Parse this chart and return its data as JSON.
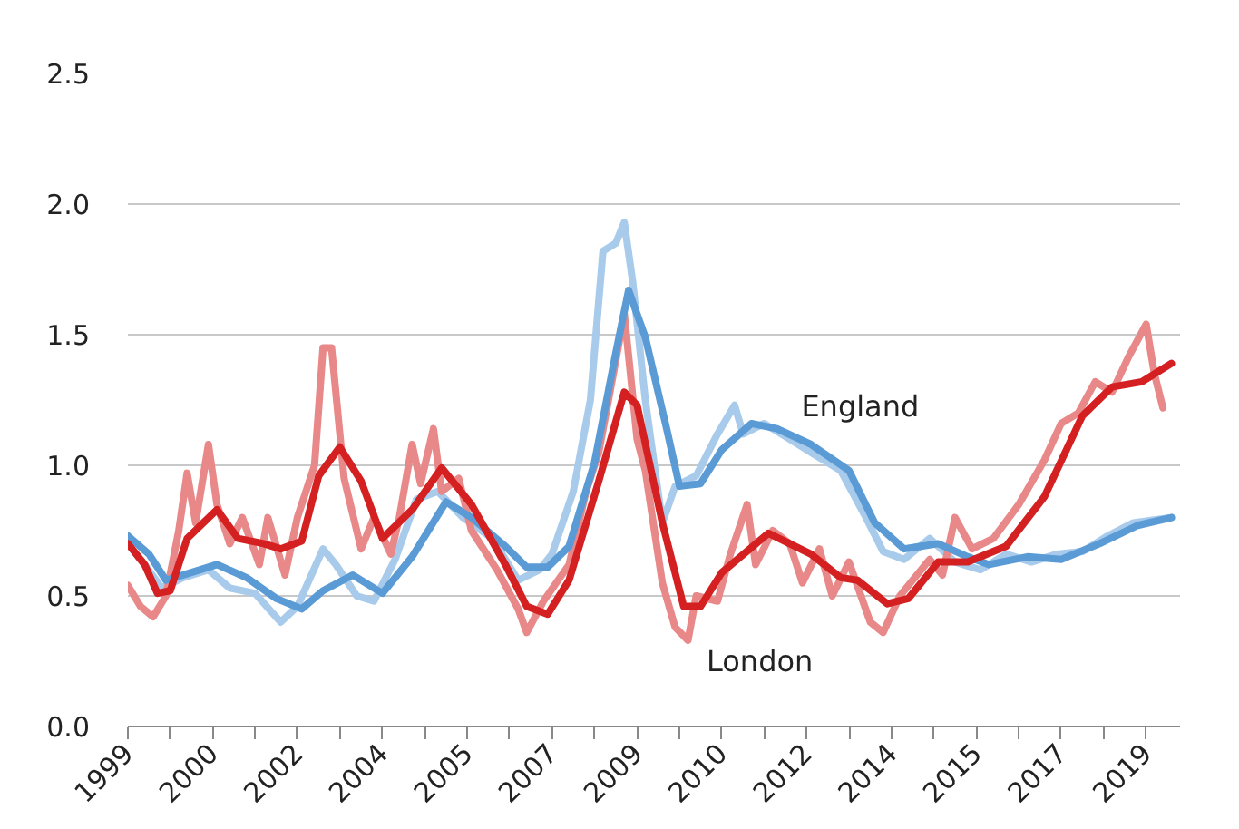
{
  "chart_data": {
    "type": "line",
    "xlim": [
      "1999-01",
      "2019-09"
    ],
    "ylim": [
      0,
      2.5
    ],
    "xticks": [
      {
        "value": "1999-01",
        "label": "1999"
      },
      {
        "value": "1999-11",
        "label": null
      },
      {
        "value": "2000-09",
        "label": "2000"
      },
      {
        "value": "2001-07",
        "label": null
      },
      {
        "value": "2002-05",
        "label": "2002"
      },
      {
        "value": "2003-03",
        "label": null
      },
      {
        "value": "2004-01",
        "label": "2004"
      },
      {
        "value": "2004-11",
        "label": null
      },
      {
        "value": "2005-09",
        "label": "2005"
      },
      {
        "value": "2006-07",
        "label": null
      },
      {
        "value": "2007-05",
        "label": "2007"
      },
      {
        "value": "2008-03",
        "label": null
      },
      {
        "value": "2009-01",
        "label": "2009"
      },
      {
        "value": "2009-11",
        "label": null
      },
      {
        "value": "2010-09",
        "label": "2010"
      },
      {
        "value": "2011-07",
        "label": null
      },
      {
        "value": "2012-05",
        "label": "2012"
      },
      {
        "value": "2013-03",
        "label": null
      },
      {
        "value": "2014-01",
        "label": "2014"
      },
      {
        "value": "2014-11",
        "label": null
      },
      {
        "value": "2015-09",
        "label": "2015"
      },
      {
        "value": "2016-07",
        "label": null
      },
      {
        "value": "2017-05",
        "label": "2017"
      },
      {
        "value": "2018-03",
        "label": null
      },
      {
        "value": "2019-01",
        "label": "2019"
      }
    ],
    "yticks": [
      {
        "value": 0,
        "label": "0.0"
      },
      {
        "value": 0.5,
        "label": "0.5"
      },
      {
        "value": 1,
        "label": "1.0"
      },
      {
        "value": 1.5,
        "label": "1.5"
      },
      {
        "value": 2,
        "label": "2.0"
      },
      {
        "value": 2.5,
        "label": "2.5"
      }
    ],
    "grid": "y",
    "marker": "none",
    "line_style": "solid",
    "series": [
      {
        "color": "#a8cbec",
        "x": [
          "1999-01",
          "1999-05",
          "1999-09",
          "2000-02",
          "2000-08",
          "2001-01",
          "2001-07",
          "2002-01",
          "2002-05",
          "2002-11",
          "2003-02",
          "2003-07",
          "2003-11",
          "2004-04",
          "2004-09",
          "2005-02",
          "2005-08",
          "2006-03",
          "2006-09",
          "2007-02",
          "2007-05",
          "2007-10",
          "2008-02",
          "2008-05",
          "2008-08",
          "2008-10",
          "2008-12",
          "2009-03",
          "2009-07",
          "2009-10",
          "2010-03",
          "2010-08",
          "2010-12",
          "2011-02",
          "2011-07",
          "2012-01",
          "2012-07",
          "2013-01",
          "2013-07",
          "2013-11",
          "2014-04",
          "2014-10",
          "2015-04",
          "2015-10",
          "2016-04",
          "2016-10",
          "2017-04",
          "2017-10",
          "2018-04",
          "2018-10",
          "2019-07"
        ],
        "values": [
          0.7,
          0.62,
          0.53,
          0.57,
          0.6,
          0.53,
          0.51,
          0.4,
          0.46,
          0.68,
          0.62,
          0.5,
          0.48,
          0.64,
          0.87,
          0.9,
          0.8,
          0.72,
          0.56,
          0.6,
          0.66,
          0.9,
          1.25,
          1.82,
          1.85,
          1.93,
          1.7,
          1.25,
          0.78,
          0.92,
          0.96,
          1.12,
          1.23,
          1.12,
          1.16,
          1.1,
          1.04,
          0.98,
          0.8,
          0.67,
          0.64,
          0.72,
          0.63,
          0.6,
          0.66,
          0.63,
          0.66,
          0.67,
          0.73,
          0.78,
          0.8
        ]
      },
      {
        "color": "#e88888",
        "x": [
          "1999-01",
          "1999-04",
          "1999-07",
          "1999-10",
          "2000-01",
          "2000-03",
          "2000-05",
          "2000-08",
          "2000-10",
          "2001-01",
          "2001-04",
          "2001-08",
          "2001-10",
          "2002-02",
          "2002-05",
          "2002-09",
          "2002-11",
          "2003-01",
          "2003-04",
          "2003-08",
          "2003-11",
          "2004-03",
          "2004-05",
          "2004-08",
          "2004-10",
          "2005-01",
          "2005-03",
          "2005-07",
          "2005-10",
          "2006-04",
          "2006-09",
          "2006-11",
          "2007-03",
          "2007-09",
          "2008-01",
          "2008-04",
          "2008-08",
          "2008-10",
          "2009-01",
          "2009-03",
          "2009-07",
          "2009-10",
          "2010-01",
          "2010-03",
          "2010-08",
          "2010-11",
          "2011-03",
          "2011-05",
          "2011-09",
          "2012-01",
          "2012-04",
          "2012-08",
          "2012-11",
          "2013-03",
          "2013-08",
          "2013-11",
          "2014-03",
          "2014-07",
          "2014-10",
          "2015-01",
          "2015-04",
          "2015-08",
          "2016-01",
          "2016-07",
          "2017-01",
          "2017-05",
          "2017-09",
          "2018-01",
          "2018-05",
          "2018-09",
          "2019-01",
          "2019-03",
          "2019-05"
        ],
        "values": [
          0.54,
          0.46,
          0.42,
          0.5,
          0.75,
          0.97,
          0.78,
          1.08,
          0.85,
          0.7,
          0.8,
          0.62,
          0.8,
          0.58,
          0.8,
          1.0,
          1.45,
          1.45,
          0.95,
          0.68,
          0.8,
          0.66,
          0.8,
          1.08,
          0.93,
          1.14,
          0.9,
          0.95,
          0.75,
          0.6,
          0.45,
          0.36,
          0.48,
          0.62,
          0.9,
          1.05,
          1.4,
          1.58,
          1.1,
          0.98,
          0.55,
          0.38,
          0.33,
          0.5,
          0.48,
          0.66,
          0.85,
          0.62,
          0.75,
          0.7,
          0.55,
          0.68,
          0.5,
          0.63,
          0.4,
          0.36,
          0.5,
          0.58,
          0.64,
          0.58,
          0.8,
          0.68,
          0.72,
          0.85,
          1.02,
          1.16,
          1.2,
          1.32,
          1.28,
          1.42,
          1.54,
          1.35,
          1.22
        ]
      },
      {
        "name": "England",
        "color": "#5b9bd5",
        "x": [
          "1999-01",
          "1999-06",
          "1999-10",
          "2000-04",
          "2000-10",
          "2001-05",
          "2001-12",
          "2002-06",
          "2002-11",
          "2003-06",
          "2004-01",
          "2004-08",
          "2005-04",
          "2005-10",
          "2006-06",
          "2006-11",
          "2007-04",
          "2007-09",
          "2008-03",
          "2008-08",
          "2008-11",
          "2009-03",
          "2009-08",
          "2009-11",
          "2010-04",
          "2010-09",
          "2011-04",
          "2011-10",
          "2012-06",
          "2013-03",
          "2013-09",
          "2014-04",
          "2014-12",
          "2015-07",
          "2015-12",
          "2016-09",
          "2017-05",
          "2018-02",
          "2018-11",
          "2019-07"
        ],
        "values": [
          0.73,
          0.66,
          0.56,
          0.59,
          0.62,
          0.57,
          0.49,
          0.45,
          0.52,
          0.58,
          0.51,
          0.65,
          0.86,
          0.8,
          0.69,
          0.61,
          0.61,
          0.69,
          1.01,
          1.43,
          1.67,
          1.49,
          1.14,
          0.92,
          0.93,
          1.06,
          1.16,
          1.14,
          1.08,
          0.98,
          0.78,
          0.68,
          0.7,
          0.65,
          0.62,
          0.65,
          0.64,
          0.7,
          0.77,
          0.8
        ]
      },
      {
        "name": "London",
        "color": "#d42020",
        "x": [
          "1999-01",
          "1999-05",
          "1999-08",
          "1999-11",
          "2000-03",
          "2000-10",
          "2001-03",
          "2001-09",
          "2002-01",
          "2002-06",
          "2002-10",
          "2003-03",
          "2003-08",
          "2004-01",
          "2004-08",
          "2005-03",
          "2005-10",
          "2006-06",
          "2006-11",
          "2007-04",
          "2007-09",
          "2008-04",
          "2008-10",
          "2009-01",
          "2009-07",
          "2009-12",
          "2010-04",
          "2010-09",
          "2011-08",
          "2012-06",
          "2013-01",
          "2013-05",
          "2013-12",
          "2014-05",
          "2014-12",
          "2015-07",
          "2016-04",
          "2017-01",
          "2017-10",
          "2018-05",
          "2018-12",
          "2019-07"
        ],
        "values": [
          0.7,
          0.62,
          0.51,
          0.52,
          0.72,
          0.83,
          0.72,
          0.7,
          0.68,
          0.71,
          0.96,
          1.07,
          0.94,
          0.72,
          0.83,
          0.99,
          0.85,
          0.62,
          0.46,
          0.43,
          0.56,
          0.94,
          1.28,
          1.23,
          0.78,
          0.46,
          0.46,
          0.59,
          0.74,
          0.66,
          0.57,
          0.56,
          0.47,
          0.49,
          0.63,
          0.63,
          0.69,
          0.88,
          1.19,
          1.3,
          1.32,
          1.39
        ]
      }
    ]
  }
}
